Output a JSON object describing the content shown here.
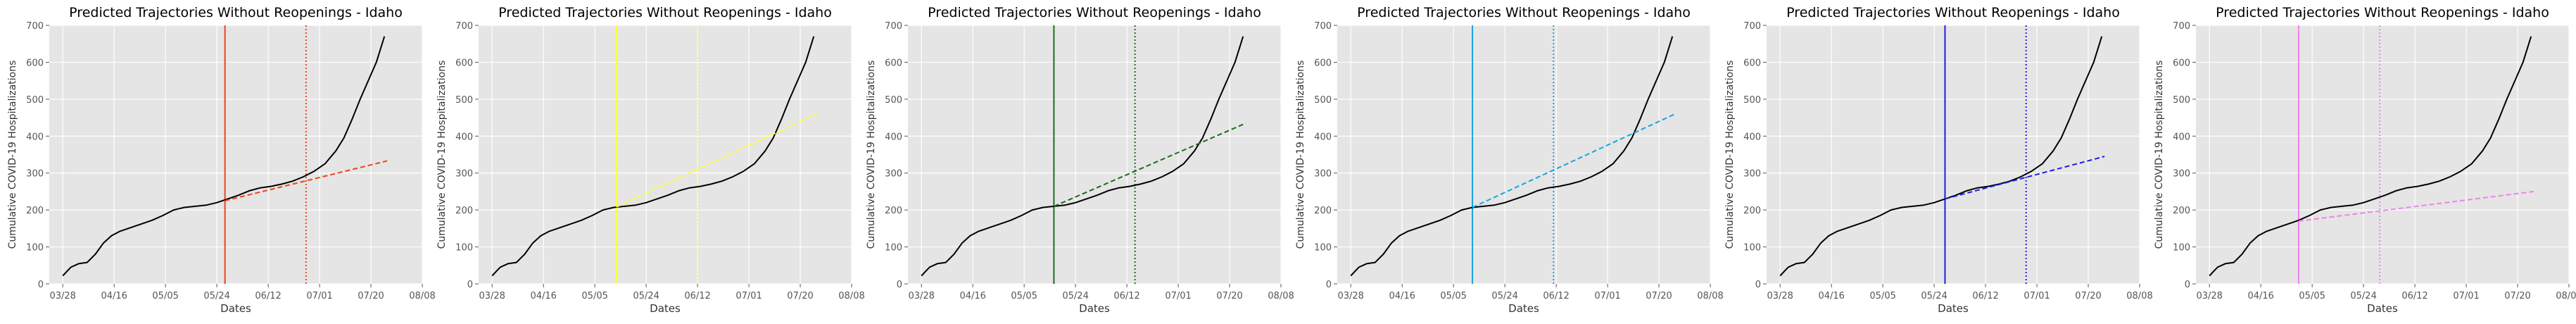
{
  "figure": {
    "background": "#ffffff",
    "axes_background": "#e5e5e5",
    "grid_color": "#ffffff",
    "tick_color": "#555555"
  },
  "chart_data": [
    {
      "type": "line",
      "title": "Predicted Trajectories Without Reopenings - Idaho",
      "xlabel": "Dates",
      "ylabel": "Cumulative COVID-19 Hospitalizations",
      "ylim": [
        0,
        700
      ],
      "yticks": [
        0,
        100,
        200,
        300,
        400,
        500,
        600,
        700
      ],
      "xlim": [
        "2020-03-23",
        "2020-08-08"
      ],
      "xticks": [
        "2020-03-28",
        "2020-04-16",
        "2020-05-05",
        "2020-05-24",
        "2020-06-12",
        "2020-07-01",
        "2020-07-20",
        "2020-08-08"
      ],
      "xtick_labels": [
        "03/28",
        "04/16",
        "05/05",
        "05/24",
        "06/12",
        "07/01",
        "07/20",
        "08/08"
      ],
      "grid": true,
      "accent": "#e8461f",
      "reopen_date": "2020-05-27",
      "end_date": "2020-06-26",
      "series": [
        {
          "style": "solid",
          "color": "#000000",
          "x": [
            "2020-03-28",
            "2020-03-31",
            "2020-04-03",
            "2020-04-06",
            "2020-04-09",
            "2020-04-12",
            "2020-04-15",
            "2020-04-18",
            "2020-04-22",
            "2020-04-26",
            "2020-04-30",
            "2020-05-04",
            "2020-05-08",
            "2020-05-12",
            "2020-05-16",
            "2020-05-20",
            "2020-05-24",
            "2020-05-28",
            "2020-06-01",
            "2020-06-05",
            "2020-06-09",
            "2020-06-13",
            "2020-06-17",
            "2020-06-21",
            "2020-06-25",
            "2020-06-29",
            "2020-07-03",
            "2020-07-07",
            "2020-07-10",
            "2020-07-13",
            "2020-07-16",
            "2020-07-19",
            "2020-07-22",
            "2020-07-25"
          ],
          "y": [
            22,
            45,
            55,
            58,
            80,
            110,
            130,
            142,
            152,
            162,
            172,
            185,
            200,
            207,
            210,
            213,
            220,
            230,
            240,
            252,
            260,
            264,
            270,
            278,
            290,
            305,
            325,
            360,
            395,
            445,
            500,
            550,
            600,
            670
          ]
        },
        {
          "style": "dashed",
          "x": [
            "2020-05-27",
            "2020-07-26"
          ],
          "y": [
            225,
            333
          ]
        }
      ]
    },
    {
      "type": "line",
      "title": "Predicted Trajectories Without Reopenings - Idaho",
      "xlabel": "Dates",
      "ylabel": "Cumulative COVID-19 Hospitalizations",
      "ylim": [
        0,
        700
      ],
      "yticks": [
        0,
        100,
        200,
        300,
        400,
        500,
        600,
        700
      ],
      "xlim": [
        "2020-03-23",
        "2020-08-08"
      ],
      "xticks": [
        "2020-03-28",
        "2020-04-16",
        "2020-05-05",
        "2020-05-24",
        "2020-06-12",
        "2020-07-01",
        "2020-07-20",
        "2020-08-08"
      ],
      "xtick_labels": [
        "03/28",
        "04/16",
        "05/05",
        "05/24",
        "06/12",
        "07/01",
        "07/20",
        "08/08"
      ],
      "grid": true,
      "accent": "#ffff3c",
      "reopen_date": "2020-05-13",
      "end_date": "2020-06-12",
      "series": [
        {
          "style": "solid",
          "color": "#000000",
          "x": [
            "2020-03-28",
            "2020-03-31",
            "2020-04-03",
            "2020-04-06",
            "2020-04-09",
            "2020-04-12",
            "2020-04-15",
            "2020-04-18",
            "2020-04-22",
            "2020-04-26",
            "2020-04-30",
            "2020-05-04",
            "2020-05-08",
            "2020-05-12",
            "2020-05-16",
            "2020-05-20",
            "2020-05-24",
            "2020-05-28",
            "2020-06-01",
            "2020-06-05",
            "2020-06-09",
            "2020-06-13",
            "2020-06-17",
            "2020-06-21",
            "2020-06-25",
            "2020-06-29",
            "2020-07-03",
            "2020-07-07",
            "2020-07-10",
            "2020-07-13",
            "2020-07-16",
            "2020-07-19",
            "2020-07-22",
            "2020-07-25"
          ],
          "y": [
            22,
            45,
            55,
            58,
            80,
            110,
            130,
            142,
            152,
            162,
            172,
            185,
            200,
            207,
            210,
            213,
            220,
            230,
            240,
            252,
            260,
            264,
            270,
            278,
            290,
            305,
            325,
            360,
            395,
            445,
            500,
            550,
            600,
            670
          ]
        },
        {
          "style": "dashed",
          "x": [
            "2020-05-13",
            "2020-07-26"
          ],
          "y": [
            208,
            460
          ]
        }
      ]
    },
    {
      "type": "line",
      "title": "Predicted Trajectories Without Reopenings - Idaho",
      "xlabel": "Dates",
      "ylabel": "Cumulative COVID-19 Hospitalizations",
      "ylim": [
        0,
        700
      ],
      "yticks": [
        0,
        100,
        200,
        300,
        400,
        500,
        600,
        700
      ],
      "xlim": [
        "2020-03-23",
        "2020-08-08"
      ],
      "xticks": [
        "2020-03-28",
        "2020-04-16",
        "2020-05-05",
        "2020-05-24",
        "2020-06-12",
        "2020-07-01",
        "2020-07-20",
        "2020-08-08"
      ],
      "xtick_labels": [
        "03/28",
        "04/16",
        "05/05",
        "05/24",
        "06/12",
        "07/01",
        "07/20",
        "08/08"
      ],
      "grid": true,
      "accent": "#1e6b1e",
      "reopen_date": "2020-05-16",
      "end_date": "2020-06-15",
      "series": [
        {
          "style": "solid",
          "color": "#000000",
          "x": [
            "2020-03-28",
            "2020-03-31",
            "2020-04-03",
            "2020-04-06",
            "2020-04-09",
            "2020-04-12",
            "2020-04-15",
            "2020-04-18",
            "2020-04-22",
            "2020-04-26",
            "2020-04-30",
            "2020-05-04",
            "2020-05-08",
            "2020-05-12",
            "2020-05-16",
            "2020-05-20",
            "2020-05-24",
            "2020-05-28",
            "2020-06-01",
            "2020-06-05",
            "2020-06-09",
            "2020-06-13",
            "2020-06-17",
            "2020-06-21",
            "2020-06-25",
            "2020-06-29",
            "2020-07-03",
            "2020-07-07",
            "2020-07-10",
            "2020-07-13",
            "2020-07-16",
            "2020-07-19",
            "2020-07-22",
            "2020-07-25"
          ],
          "y": [
            22,
            45,
            55,
            58,
            80,
            110,
            130,
            142,
            152,
            162,
            172,
            185,
            200,
            207,
            210,
            213,
            220,
            230,
            240,
            252,
            260,
            264,
            270,
            278,
            290,
            305,
            325,
            360,
            395,
            445,
            500,
            550,
            600,
            670
          ]
        },
        {
          "style": "dashed",
          "x": [
            "2020-05-16",
            "2020-07-26"
          ],
          "y": [
            210,
            435
          ]
        }
      ]
    },
    {
      "type": "line",
      "title": "Predicted Trajectories Without Reopenings - Idaho",
      "xlabel": "Dates",
      "ylabel": "Cumulative COVID-19 Hospitalizations",
      "ylim": [
        0,
        700
      ],
      "yticks": [
        0,
        100,
        200,
        300,
        400,
        500,
        600,
        700
      ],
      "xlim": [
        "2020-03-23",
        "2020-08-08"
      ],
      "xticks": [
        "2020-03-28",
        "2020-04-16",
        "2020-05-05",
        "2020-05-24",
        "2020-06-12",
        "2020-07-01",
        "2020-07-20",
        "2020-08-08"
      ],
      "xtick_labels": [
        "03/28",
        "04/16",
        "05/05",
        "05/24",
        "06/12",
        "07/01",
        "07/20",
        "08/08"
      ],
      "grid": true,
      "accent": "#1aa3e0",
      "reopen_date": "2020-05-12",
      "end_date": "2020-06-11",
      "series": [
        {
          "style": "solid",
          "color": "#000000",
          "x": [
            "2020-03-28",
            "2020-03-31",
            "2020-04-03",
            "2020-04-06",
            "2020-04-09",
            "2020-04-12",
            "2020-04-15",
            "2020-04-18",
            "2020-04-22",
            "2020-04-26",
            "2020-04-30",
            "2020-05-04",
            "2020-05-08",
            "2020-05-12",
            "2020-05-16",
            "2020-05-20",
            "2020-05-24",
            "2020-05-28",
            "2020-06-01",
            "2020-06-05",
            "2020-06-09",
            "2020-06-13",
            "2020-06-17",
            "2020-06-21",
            "2020-06-25",
            "2020-06-29",
            "2020-07-03",
            "2020-07-07",
            "2020-07-10",
            "2020-07-13",
            "2020-07-16",
            "2020-07-19",
            "2020-07-22",
            "2020-07-25"
          ],
          "y": [
            22,
            45,
            55,
            58,
            80,
            110,
            130,
            142,
            152,
            162,
            172,
            185,
            200,
            207,
            210,
            213,
            220,
            230,
            240,
            252,
            260,
            264,
            270,
            278,
            290,
            305,
            325,
            360,
            395,
            445,
            500,
            550,
            600,
            670
          ]
        },
        {
          "style": "dashed",
          "x": [
            "2020-05-12",
            "2020-07-26"
          ],
          "y": [
            207,
            460
          ]
        }
      ]
    },
    {
      "type": "line",
      "title": "Predicted Trajectories Without Reopenings - Idaho",
      "xlabel": "Dates",
      "ylabel": "Cumulative COVID-19 Hospitalizations",
      "ylim": [
        0,
        700
      ],
      "yticks": [
        0,
        100,
        200,
        300,
        400,
        500,
        600,
        700
      ],
      "xlim": [
        "2020-03-23",
        "2020-08-08"
      ],
      "xticks": [
        "2020-03-28",
        "2020-04-16",
        "2020-05-05",
        "2020-05-24",
        "2020-06-12",
        "2020-07-01",
        "2020-07-20",
        "2020-08-08"
      ],
      "xtick_labels": [
        "03/28",
        "04/16",
        "05/05",
        "05/24",
        "06/12",
        "07/01",
        "07/20",
        "08/08"
      ],
      "grid": true,
      "accent": "#1f1fe0",
      "reopen_date": "2020-05-28",
      "end_date": "2020-06-27",
      "series": [
        {
          "style": "solid",
          "color": "#000000",
          "x": [
            "2020-03-28",
            "2020-03-31",
            "2020-04-03",
            "2020-04-06",
            "2020-04-09",
            "2020-04-12",
            "2020-04-15",
            "2020-04-18",
            "2020-04-22",
            "2020-04-26",
            "2020-04-30",
            "2020-05-04",
            "2020-05-08",
            "2020-05-12",
            "2020-05-16",
            "2020-05-20",
            "2020-05-24",
            "2020-05-28",
            "2020-06-01",
            "2020-06-05",
            "2020-06-09",
            "2020-06-13",
            "2020-06-17",
            "2020-06-21",
            "2020-06-25",
            "2020-06-29",
            "2020-07-03",
            "2020-07-07",
            "2020-07-10",
            "2020-07-13",
            "2020-07-16",
            "2020-07-19",
            "2020-07-22",
            "2020-07-25"
          ],
          "y": [
            22,
            45,
            55,
            58,
            80,
            110,
            130,
            142,
            152,
            162,
            172,
            185,
            200,
            207,
            210,
            213,
            220,
            230,
            240,
            252,
            260,
            264,
            270,
            278,
            290,
            305,
            325,
            360,
            395,
            445,
            500,
            550,
            600,
            670
          ]
        },
        {
          "style": "dashed",
          "x": [
            "2020-05-28",
            "2020-07-26"
          ],
          "y": [
            230,
            345
          ]
        }
      ]
    },
    {
      "type": "line",
      "title": "Predicted Trajectories Without Reopenings - Idaho",
      "xlabel": "Dates",
      "ylabel": "Cumulative COVID-19 Hospitalizations",
      "ylim": [
        0,
        700
      ],
      "yticks": [
        0,
        100,
        200,
        300,
        400,
        500,
        600,
        700
      ],
      "xlim": [
        "2020-03-23",
        "2020-08-08"
      ],
      "xticks": [
        "2020-03-28",
        "2020-04-16",
        "2020-05-05",
        "2020-05-24",
        "2020-06-12",
        "2020-07-01",
        "2020-07-20",
        "2020-08-08"
      ],
      "xtick_labels": [
        "03/28",
        "04/16",
        "05/05",
        "05/24",
        "06/12",
        "07/01",
        "07/20",
        "08/08"
      ],
      "grid": true,
      "accent": "#ee82ee",
      "reopen_date": "2020-04-30",
      "end_date": "2020-05-30",
      "series": [
        {
          "style": "solid",
          "color": "#000000",
          "x": [
            "2020-03-28",
            "2020-03-31",
            "2020-04-03",
            "2020-04-06",
            "2020-04-09",
            "2020-04-12",
            "2020-04-15",
            "2020-04-18",
            "2020-04-22",
            "2020-04-26",
            "2020-04-30",
            "2020-05-04",
            "2020-05-08",
            "2020-05-12",
            "2020-05-16",
            "2020-05-20",
            "2020-05-24",
            "2020-05-28",
            "2020-06-01",
            "2020-06-05",
            "2020-06-09",
            "2020-06-13",
            "2020-06-17",
            "2020-06-21",
            "2020-06-25",
            "2020-06-29",
            "2020-07-03",
            "2020-07-07",
            "2020-07-10",
            "2020-07-13",
            "2020-07-16",
            "2020-07-19",
            "2020-07-22",
            "2020-07-25"
          ],
          "y": [
            22,
            45,
            55,
            58,
            80,
            110,
            130,
            142,
            152,
            162,
            172,
            185,
            200,
            207,
            210,
            213,
            220,
            230,
            240,
            252,
            260,
            264,
            270,
            278,
            290,
            305,
            325,
            360,
            395,
            445,
            500,
            550,
            600,
            670
          ]
        },
        {
          "style": "dashed",
          "x": [
            "2020-04-30",
            "2020-07-26"
          ],
          "y": [
            170,
            250
          ]
        }
      ]
    }
  ]
}
